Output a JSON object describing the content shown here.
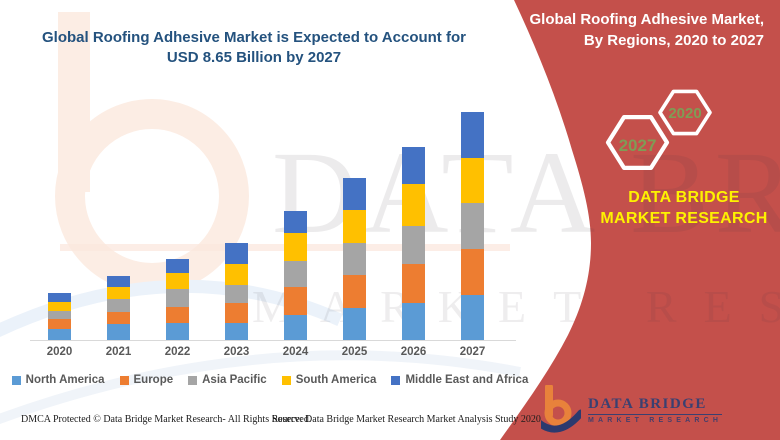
{
  "title": "Global Roofing Adhesive Market is Expected to Account for USD 8.65 Billion by 2027",
  "banner": {
    "heading": "Global Roofing Adhesive Market, By Regions, 2020 to 2027",
    "hexagons": [
      "2027",
      "2020"
    ],
    "brand": "DATA BRIDGE MARKET RESEARCH"
  },
  "chart_data": {
    "type": "bar",
    "stacked": true,
    "title": "Global Roofing Adhesive Market is Expected to Account for USD 8.65 Billion by 2027",
    "unit": "USD Billion",
    "categories": [
      "2020",
      "2021",
      "2022",
      "2023",
      "2024",
      "2025",
      "2026",
      "2027"
    ],
    "series": [
      {
        "name": "North America",
        "color": "#5B9BD5",
        "values": [
          0.41,
          0.6,
          0.65,
          0.66,
          0.97,
          1.23,
          1.41,
          1.71
        ]
      },
      {
        "name": "Europe",
        "color": "#ED7D31",
        "values": [
          0.38,
          0.47,
          0.61,
          0.76,
          1.06,
          1.24,
          1.49,
          1.75
        ]
      },
      {
        "name": "Asia Pacific",
        "color": "#A5A5A5",
        "values": [
          0.32,
          0.47,
          0.66,
          0.67,
          0.99,
          1.2,
          1.44,
          1.74
        ]
      },
      {
        "name": "South America",
        "color": "#FFC000",
        "values": [
          0.35,
          0.46,
          0.61,
          0.8,
          1.03,
          1.27,
          1.58,
          1.73
        ]
      },
      {
        "name": "Middle East and Africa",
        "color": "#4472C4",
        "values": [
          0.34,
          0.43,
          0.55,
          0.8,
          0.85,
          1.23,
          1.43,
          1.72
        ]
      }
    ],
    "totals": [
      1.8,
      2.43,
      3.08,
      3.69,
      4.9,
      6.17,
      7.35,
      8.65
    ],
    "ylim": [
      0,
      9.1
    ],
    "y_axis_visible": false,
    "gridlines": false,
    "legend_position": "bottom"
  },
  "watermark": {
    "line1": "DATA BRIDGE",
    "line2": "MARKET RESEARCH"
  },
  "footer": {
    "left": "DMCA Protected © Data Bridge Market Research- All Rights Reserved.",
    "right": "Source: Data Bridge Market Research Market Analysis Study 2020"
  },
  "logo": {
    "name": "DATA BRIDGE",
    "tagline": "MARKET RESEARCH"
  },
  "colors": {
    "banner_red": "#C4504B",
    "title_blue": "#24527E",
    "brand_yellow": "#FEF200",
    "hex_year_green": "#7F9C55",
    "legend_text": "#595959",
    "axis_line": "#D9D9D9"
  }
}
